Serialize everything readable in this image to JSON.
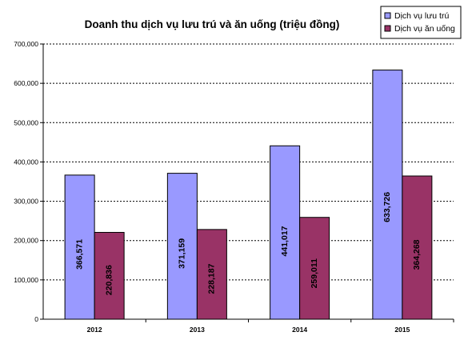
{
  "chart_data": {
    "type": "bar",
    "title": "Doanh thu dịch vụ lưu trú và ăn uống (triệu đồng)",
    "xlabel": "",
    "ylabel": "",
    "categories": [
      "2012",
      "2013",
      "2014",
      "2015"
    ],
    "series": [
      {
        "name": "Dịch vụ lưu trú",
        "values": [
          366571,
          371159,
          441017,
          633726
        ],
        "labels": [
          "366,571",
          "371,159",
          "441,017",
          "633,726"
        ],
        "color": "#9999ff"
      },
      {
        "name": "Dịch vụ ăn uống",
        "values": [
          220836,
          228187,
          259011,
          364268
        ],
        "labels": [
          "220,836",
          "228,187",
          "259,011",
          "364,268"
        ],
        "color": "#993366"
      }
    ],
    "ylim": [
      0,
      700000
    ],
    "yticks": [
      0,
      100000,
      200000,
      300000,
      400000,
      500000,
      600000,
      700000
    ],
    "ytick_labels": [
      "0",
      "100,000",
      "200,000",
      "300,000",
      "400,000",
      "500,000",
      "600,000",
      "700,000"
    ],
    "grid": true,
    "legend_position": "top-right"
  }
}
